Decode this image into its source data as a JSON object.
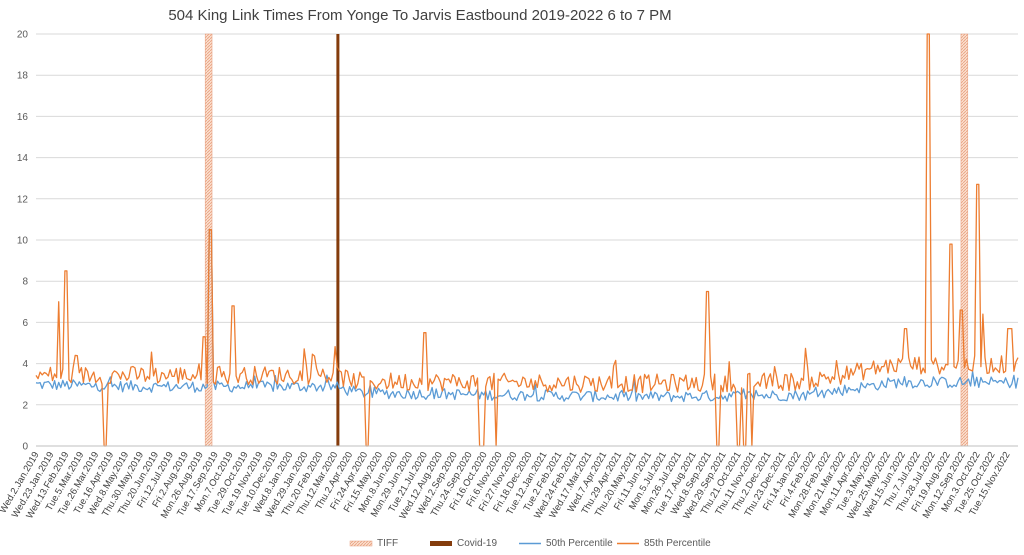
{
  "chart_data": {
    "type": "line",
    "title": "504 King Link Times From Yonge To Jarvis Eastbound 2019-2022 6 to 7 PM",
    "xlabel": "",
    "ylabel": "",
    "ylim": [
      0,
      20
    ],
    "yticks": [
      0,
      2,
      4,
      6,
      8,
      10,
      12,
      14,
      16,
      18,
      20
    ],
    "xlim": [
      "2019-01-02",
      "2022-11-30"
    ],
    "x_tick_labels": [
      "Wed.2.Jan.2019",
      "Wed.23.Jan.2019",
      "Wed.13.Feb.2019",
      "Tue.5.Mar.2019",
      "Tue.26.Mar.2019",
      "Tue.16.Apr.2019",
      "Wed.8.May.2019",
      "Thu.30.May.2019",
      "Thu.20.Jun.2019",
      "Fri.12.Jul.2019",
      "Fri.2.Aug.2019",
      "Mon.26.Aug.2019",
      "Tue.17.Sep.2019",
      "Mon.7.Oct.2019",
      "Tue.29.Oct.2019",
      "Tue.19.Nov.2019",
      "Tue.10.Dec.2019",
      "Wed.8.Jan.2020",
      "Wed.29.Jan.2020",
      "Thu.20.Feb.2020",
      "Thu.12.Mar.2020",
      "Thu.2.Apr.2020",
      "Fri.24.Apr.2020",
      "Fri.15.May.2020",
      "Mon.8.Jun.2020",
      "Mon.29.Jun.2020",
      "Tue.21.Jul.2020",
      "Wed.12.Aug.2020",
      "Wed.2.Sep.2020",
      "Thu.24.Sep.2020",
      "Fri.16.Oct.2020",
      "Fri.6.Nov.2020",
      "Fri.27.Nov.2020",
      "Fri.18.Dec.2020",
      "Tue.12.Jan.2021",
      "Tue.2.Feb.2021",
      "Wed.24.Feb.2021",
      "Wed.17.Mar.2021",
      "Wed.7.Apr.2021",
      "Thu.29.Apr.2021",
      "Thu.20.May.2021",
      "Fri.11.Jun.2021",
      "Mon.5.Jul.2021",
      "Mon.26.Jul.2021",
      "Tue.17.Aug.2021",
      "Wed.8.Sep.2021",
      "Wed.29.Sep.2021",
      "Thu.21.Oct.2021",
      "Thu.11.Nov.2021",
      "Thu.2.Dec.2021",
      "Thu.23.Dec.2021",
      "Fri.14.Jan.2022",
      "Fri.4.Feb.2022",
      "Mon.28.Feb.2022",
      "Mon.21.Mar.2022",
      "Mon.11.Apr.2022",
      "Tue.3.May.2022",
      "Wed.25.May.2022",
      "Wed.15.Jun.2022",
      "Thu.7.Jul.2022",
      "Thu.28.Jul.2022",
      "Fri.19.Aug.2022",
      "Mon.12.Sep.2022",
      "Mon.3.Oct.2022",
      "Tue.25.Oct.2022",
      "Tue.15.Nov.2022"
    ],
    "events": [
      {
        "name": "TIFF",
        "start": "2019-09-05",
        "end": "2019-09-15",
        "color": "#f4b183",
        "pattern": "hatched"
      },
      {
        "name": "TIFF",
        "start": "2022-09-08",
        "end": "2022-09-18",
        "color": "#f4b183",
        "pattern": "hatched"
      },
      {
        "name": "Covid-19",
        "date": "2020-03-16",
        "color": "#843c0c"
      }
    ],
    "series": [
      {
        "name": "50th Percentile",
        "color": "#5b9bd5",
        "base_level": [
          [
            "2019-01-02",
            2.9
          ],
          [
            "2019-06-01",
            2.8
          ],
          [
            "2020-03-10",
            2.8
          ],
          [
            "2020-04-15",
            2.5
          ],
          [
            "2021-06-01",
            2.3
          ],
          [
            "2022-02-01",
            2.4
          ],
          [
            "2022-06-01",
            3.0
          ],
          [
            "2022-11-30",
            3.0
          ]
        ],
        "peaks": [
          [
            "2019-09-13",
            10.5
          ]
        ]
      },
      {
        "name": "85th Percentile",
        "color": "#ed7d31",
        "base_level": [
          [
            "2019-01-02",
            3.3
          ],
          [
            "2019-06-01",
            3.3
          ],
          [
            "2020-03-10",
            3.3
          ],
          [
            "2020-04-15",
            3.0
          ],
          [
            "2021-06-01",
            2.9
          ],
          [
            "2022-02-01",
            3.0
          ],
          [
            "2022-06-01",
            3.8
          ],
          [
            "2022-11-30",
            3.8
          ]
        ],
        "peaks": [
          [
            "2019-02-04",
            7.0
          ],
          [
            "2019-02-14",
            8.5
          ],
          [
            "2019-09-04",
            5.3
          ],
          [
            "2019-09-13",
            10.5
          ],
          [
            "2019-10-16",
            6.8
          ],
          [
            "2020-07-20",
            5.5
          ],
          [
            "2021-09-04",
            7.5
          ],
          [
            "2022-06-20",
            5.7
          ],
          [
            "2022-07-22",
            20.0
          ],
          [
            "2022-08-24",
            9.8
          ],
          [
            "2022-09-08",
            6.6
          ],
          [
            "2022-10-03",
            12.7
          ],
          [
            "2022-10-10",
            6.4
          ],
          [
            "2022-11-15",
            5.7
          ],
          [
            "2022-11-20",
            5.7
          ]
        ],
        "drops_to_zero": [
          "2019-04-13",
          "2020-04-28",
          "2020-10-08",
          "2020-10-12",
          "2020-11-01",
          "2021-09-20",
          "2021-10-20",
          "2021-10-28",
          "2021-11-08"
        ]
      }
    ],
    "legend": {
      "position": "bottom",
      "items": [
        {
          "label": "TIFF",
          "color": "#f4b183",
          "kind": "hatched-bar"
        },
        {
          "label": "Covid-19",
          "color": "#843c0c",
          "kind": "bar"
        },
        {
          "label": "50th Percentile",
          "color": "#5b9bd5",
          "kind": "line"
        },
        {
          "label": "85th Percentile",
          "color": "#ed7d31",
          "kind": "line"
        }
      ]
    },
    "grid": true
  }
}
